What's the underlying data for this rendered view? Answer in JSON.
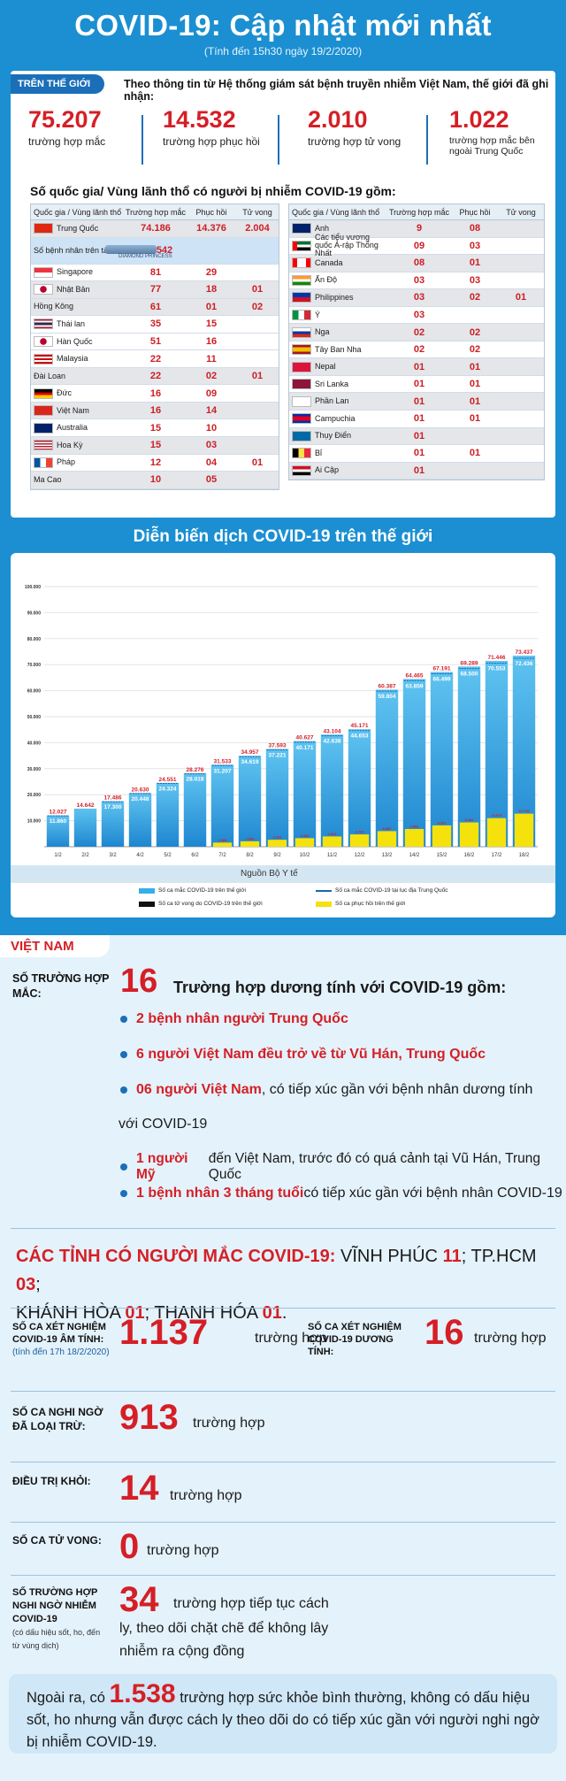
{
  "header": {
    "title": "COVID-19: Cập nhật mới nhất",
    "subtitle": "(Tính đến 15h30 ngày 19/2/2020)"
  },
  "world": {
    "tag": "TRÊN THẾ GIỚI",
    "intro": "Theo thông tin từ Hệ thống giám sát bệnh truyền nhiễm Việt Nam, thế giới đã ghi nhận:",
    "stats": [
      {
        "num": "75.207",
        "label": "trường hợp mắc"
      },
      {
        "num": "14.532",
        "label": "trường hợp phục hồi"
      },
      {
        "num": "2.010",
        "label": "trường hợp tử vong"
      },
      {
        "num": "1.022",
        "label": "trường hợp mắc bên ngoài Trung Quốc"
      }
    ],
    "subhead": "Số quốc gia/ Vùng lãnh thổ có người bị nhiễm COVID-19 gồm:",
    "headers": [
      "Quốc gia / Vùng lãnh thổ",
      "Trường hợp mắc",
      "Phục hồi",
      "Tử vong"
    ],
    "left": [
      {
        "name": "Trung Quốc",
        "cases": "74.186",
        "rec": "14.376",
        "dead": "2.004",
        "flag": "cn"
      },
      {
        "name": "Số bệnh nhân trên tàu du lịch",
        "cases": "542",
        "rec": "",
        "dead": "",
        "flag": "ship",
        "ship": "DIAMOND PRINCESS"
      },
      {
        "name": "Singapore",
        "cases": "81",
        "rec": "29",
        "dead": "",
        "flag": "sg"
      },
      {
        "name": "Nhật Bản",
        "cases": "77",
        "rec": "18",
        "dead": "01",
        "flag": "jp"
      },
      {
        "name": "Hồng Kông",
        "cases": "61",
        "rec": "01",
        "dead": "02",
        "flag": ""
      },
      {
        "name": "Thái lan",
        "cases": "35",
        "rec": "15",
        "dead": "",
        "flag": "th"
      },
      {
        "name": "Hàn Quốc",
        "cases": "51",
        "rec": "16",
        "dead": "",
        "flag": "kr"
      },
      {
        "name": "Malaysia",
        "cases": "22",
        "rec": "11",
        "dead": "",
        "flag": "my"
      },
      {
        "name": "Đài Loan",
        "cases": "22",
        "rec": "02",
        "dead": "01",
        "flag": ""
      },
      {
        "name": "Đức",
        "cases": "16",
        "rec": "09",
        "dead": "",
        "flag": "de"
      },
      {
        "name": "Việt Nam",
        "cases": "16",
        "rec": "14",
        "dead": "",
        "flag": "vn"
      },
      {
        "name": "Australia",
        "cases": "15",
        "rec": "10",
        "dead": "",
        "flag": "au"
      },
      {
        "name": "Hoa Kỳ",
        "cases": "15",
        "rec": "03",
        "dead": "",
        "flag": "us"
      },
      {
        "name": "Pháp",
        "cases": "12",
        "rec": "04",
        "dead": "01",
        "flag": "fr"
      },
      {
        "name": "Ma Cao",
        "cases": "10",
        "rec": "05",
        "dead": "",
        "flag": ""
      }
    ],
    "right": [
      {
        "name": "Anh",
        "cases": "9",
        "rec": "08",
        "dead": "",
        "flag": "uk"
      },
      {
        "name": "Các tiểu vương quốc Ả-rập Thống Nhất",
        "cases": "09",
        "rec": "03",
        "dead": "",
        "flag": "ae"
      },
      {
        "name": "Canada",
        "cases": "08",
        "rec": "01",
        "dead": "",
        "flag": "ca"
      },
      {
        "name": "Ấn Độ",
        "cases": "03",
        "rec": "03",
        "dead": "",
        "flag": "in"
      },
      {
        "name": "Philippines",
        "cases": "03",
        "rec": "02",
        "dead": "01",
        "flag": "ph"
      },
      {
        "name": "Ý",
        "cases": "03",
        "rec": "",
        "dead": "",
        "flag": "it"
      },
      {
        "name": "Nga",
        "cases": "02",
        "rec": "02",
        "dead": "",
        "flag": "ru"
      },
      {
        "name": "Tây Ban Nha",
        "cases": "02",
        "rec": "02",
        "dead": "",
        "flag": "es"
      },
      {
        "name": "Nepal",
        "cases": "01",
        "rec": "01",
        "dead": "",
        "flag": "np"
      },
      {
        "name": "Sri Lanka",
        "cases": "01",
        "rec": "01",
        "dead": "",
        "flag": "lk"
      },
      {
        "name": "Phần Lan",
        "cases": "01",
        "rec": "01",
        "dead": "",
        "flag": "fi"
      },
      {
        "name": "Campuchia",
        "cases": "01",
        "rec": "01",
        "dead": "",
        "flag": "kh"
      },
      {
        "name": "Thụy Điển",
        "cases": "01",
        "rec": "",
        "dead": "",
        "flag": "se"
      },
      {
        "name": "Bỉ",
        "cases": "01",
        "rec": "01",
        "dead": "",
        "flag": "be"
      },
      {
        "name": "Ai Cập",
        "cases": "01",
        "rec": "",
        "dead": "",
        "flag": "eg"
      }
    ]
  },
  "chart_title": "Diễn biến dịch COVID-19 trên thế giới",
  "chart_data": {
    "type": "bar",
    "categories": [
      "1/2",
      "2/2",
      "3/2",
      "4/2",
      "5/2",
      "6/2",
      "7/2",
      "8/2",
      "9/2",
      "10/2",
      "11/2",
      "12/2",
      "13/2",
      "14/2",
      "15/2",
      "16/2",
      "17/2",
      "18/2"
    ],
    "series": [
      {
        "name": "Số ca mắc COVID-19 trên thế giới",
        "values": [
          12027,
          14642,
          17486,
          20630,
          24551,
          28276,
          31533,
          34957,
          37593,
          40627,
          43104,
          45171,
          60387,
          64465,
          67191,
          69289,
          71446,
          73437
        ]
      },
      {
        "name": "Số ca mắc COVID-19 tại lục địa Trung Quốc",
        "values": [
          11860,
          null,
          17300,
          20448,
          24324,
          28018,
          31207,
          34619,
          37221,
          40171,
          42638,
          44653,
          59804,
          63859,
          66499,
          68500,
          70553,
          72436
        ]
      },
      {
        "name": "Số ca tử vong do COVID-19 trên thế giới",
        "values": [
          null,
          null,
          null,
          null,
          null,
          null,
          null,
          null,
          null,
          null,
          null,
          null,
          null,
          null,
          null,
          null,
          null,
          null
        ]
      },
      {
        "name": "Số ca phục hồi trên thế giới",
        "values": [
          null,
          null,
          null,
          null,
          null,
          null,
          1585,
          2084,
          2661,
          3282,
          3944,
          4730,
          5987,
          6806,
          8201,
          9342,
          10975,
          12710
        ]
      }
    ],
    "ylim": [
      0,
      100000
    ],
    "yticks": [
      "10.000",
      "20.000",
      "30.000",
      "40.000",
      "50.000",
      "60.000",
      "70.000",
      "80.000",
      "90.000",
      "100.000"
    ],
    "source": "Nguồn Bộ Y tế",
    "colors": {
      "world": "#36aeea",
      "china": "#1a64b0",
      "dead": "#111111",
      "recovered": "#f5e10c"
    }
  },
  "vietnam": {
    "tag": "VIỆT NAM",
    "cases_label": "SỐ TRƯỜNG HỢP MẮC:",
    "cases_num": "16",
    "cases_text": "Trường hợp dương tính với COVID-19 gồm:",
    "bullets": [
      {
        "red": "2 bệnh nhân người Trung Quốc",
        "rest": ""
      },
      {
        "red": "6 người Việt Nam đều trở về từ Vũ Hán, Trung Quốc",
        "rest": ""
      },
      {
        "red": "06 người Việt Nam",
        "rest": ", có tiếp xúc gần với bệnh nhân dương tính"
      },
      {
        "red": "1 người Mỹ",
        "rest": " đến Việt Nam, trước đó có quá cảnh tại Vũ Hán, Trung Quốc"
      },
      {
        "red": "1 bệnh nhân 3 tháng tuổi",
        "rest": " có tiếp xúc gần với bệnh nhân COVID-19"
      }
    ],
    "bullet3_cont": "với COVID-19",
    "prov_head": "CÁC TỈNH CÓ NGƯỜI MẮC COVID-19:",
    "prov_line1": " VĨNH PHÚC ",
    "prov_n1": "11",
    "prov_sep1": "; TP.HCM ",
    "prov_n2": "03",
    "prov_sep2": ";",
    "prov_line2a": "KHÁNH HÒA ",
    "prov_n3": "01",
    "prov_line2b": "; THANH HÓA ",
    "prov_n4": "01",
    "prov_end": ".",
    "neg_label": "SỐ CA XÉT NGHIỆM COVID-19 ÂM TÍNH:",
    "neg_note": "(tính đến 17h 18/2/2020)",
    "neg_num": "1.137",
    "neg_unit": "trường hợp",
    "pos_label": "SỐ CA XÉT NGHIỆM COVID-19 DƯƠNG TÍNH:",
    "pos_num": "16",
    "pos_unit": "trường hợp",
    "sus_label": "SỐ CA NGHI NGỜ ĐÃ LOẠI TRỪ:",
    "sus_num": "913",
    "sus_unit": "trường hợp",
    "cure_label": "ĐIỀU TRỊ KHỎI:",
    "cure_num": "14",
    "cure_unit": "trường hợp",
    "dead_label": "SỐ CA TỬ VONG:",
    "dead_num": "0",
    "dead_unit": "trường hợp",
    "susp_label": "SỐ TRƯỜNG HỢP NGHI NGỜ NHIỄM COVID-19",
    "susp_note": "(có dấu hiệu sốt, ho, đến từ vùng dịch)",
    "susp_num": "34",
    "susp_text1": "trường hợp tiếp tục cách",
    "susp_text2": "ly, theo dõi chặt chẽ để không lây",
    "susp_text3": "nhiễm ra cộng đồng",
    "bottom_pre": "Ngoài ra, có ",
    "bottom_num": "1.538",
    "bottom_post": " trường hợp sức khỏe bình thường, không có dấu hiệu sốt, ho nhưng vẫn được cách ly theo dõi do có tiếp xúc gần với người nghi ngờ bị nhiễm  COVID-19."
  }
}
